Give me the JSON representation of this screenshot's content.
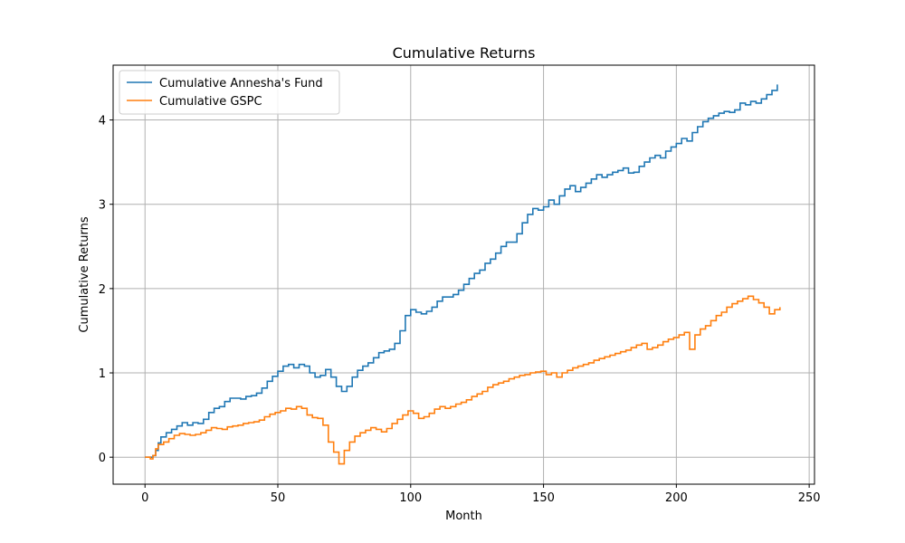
{
  "chart_data": {
    "type": "line",
    "title": "Cumulative Returns",
    "xlabel": "Month",
    "ylabel": "Cumulative Returns",
    "xlim": [
      -12,
      252
    ],
    "ylim": [
      -0.32,
      4.65
    ],
    "x_ticks": [
      0,
      50,
      100,
      150,
      200,
      250
    ],
    "y_ticks": [
      0,
      1,
      2,
      3,
      4
    ],
    "grid": true,
    "legend_placement": "upper-left",
    "step_style": "steps-post",
    "series": [
      {
        "name": "Cumulative Annesha's Fund",
        "color": "#1f77b4",
        "points": [
          [
            0,
            0.0
          ],
          [
            3,
            0.02
          ],
          [
            4,
            0.08
          ],
          [
            5,
            0.17
          ],
          [
            6,
            0.24
          ],
          [
            8,
            0.29
          ],
          [
            10,
            0.33
          ],
          [
            12,
            0.37
          ],
          [
            14,
            0.41
          ],
          [
            16,
            0.38
          ],
          [
            18,
            0.41
          ],
          [
            20,
            0.4
          ],
          [
            22,
            0.45
          ],
          [
            24,
            0.53
          ],
          [
            26,
            0.58
          ],
          [
            28,
            0.6
          ],
          [
            30,
            0.66
          ],
          [
            32,
            0.7
          ],
          [
            34,
            0.7
          ],
          [
            36,
            0.69
          ],
          [
            38,
            0.72
          ],
          [
            40,
            0.73
          ],
          [
            42,
            0.76
          ],
          [
            44,
            0.82
          ],
          [
            46,
            0.9
          ],
          [
            48,
            0.96
          ],
          [
            50,
            1.02
          ],
          [
            52,
            1.08
          ],
          [
            54,
            1.1
          ],
          [
            56,
            1.06
          ],
          [
            58,
            1.1
          ],
          [
            60,
            1.08
          ],
          [
            62,
            1.0
          ],
          [
            64,
            0.95
          ],
          [
            66,
            0.97
          ],
          [
            68,
            1.04
          ],
          [
            70,
            0.95
          ],
          [
            72,
            0.84
          ],
          [
            74,
            0.78
          ],
          [
            76,
            0.84
          ],
          [
            78,
            0.95
          ],
          [
            80,
            1.03
          ],
          [
            82,
            1.08
          ],
          [
            84,
            1.12
          ],
          [
            86,
            1.18
          ],
          [
            88,
            1.24
          ],
          [
            90,
            1.26
          ],
          [
            92,
            1.28
          ],
          [
            94,
            1.35
          ],
          [
            96,
            1.5
          ],
          [
            98,
            1.68
          ],
          [
            100,
            1.75
          ],
          [
            102,
            1.72
          ],
          [
            104,
            1.7
          ],
          [
            106,
            1.73
          ],
          [
            108,
            1.78
          ],
          [
            110,
            1.85
          ],
          [
            112,
            1.9
          ],
          [
            114,
            1.9
          ],
          [
            116,
            1.93
          ],
          [
            118,
            1.98
          ],
          [
            120,
            2.05
          ],
          [
            122,
            2.12
          ],
          [
            124,
            2.18
          ],
          [
            126,
            2.22
          ],
          [
            128,
            2.3
          ],
          [
            130,
            2.35
          ],
          [
            132,
            2.42
          ],
          [
            134,
            2.5
          ],
          [
            136,
            2.55
          ],
          [
            138,
            2.55
          ],
          [
            140,
            2.65
          ],
          [
            142,
            2.78
          ],
          [
            144,
            2.88
          ],
          [
            146,
            2.95
          ],
          [
            148,
            2.93
          ],
          [
            150,
            2.97
          ],
          [
            152,
            3.05
          ],
          [
            154,
            3.0
          ],
          [
            156,
            3.1
          ],
          [
            158,
            3.18
          ],
          [
            160,
            3.22
          ],
          [
            162,
            3.15
          ],
          [
            164,
            3.2
          ],
          [
            166,
            3.25
          ],
          [
            168,
            3.3
          ],
          [
            170,
            3.35
          ],
          [
            172,
            3.32
          ],
          [
            174,
            3.35
          ],
          [
            176,
            3.38
          ],
          [
            178,
            3.4
          ],
          [
            180,
            3.43
          ],
          [
            182,
            3.37
          ],
          [
            184,
            3.38
          ],
          [
            186,
            3.45
          ],
          [
            188,
            3.5
          ],
          [
            190,
            3.55
          ],
          [
            192,
            3.58
          ],
          [
            194,
            3.55
          ],
          [
            196,
            3.63
          ],
          [
            198,
            3.68
          ],
          [
            200,
            3.72
          ],
          [
            202,
            3.78
          ],
          [
            204,
            3.75
          ],
          [
            206,
            3.85
          ],
          [
            208,
            3.92
          ],
          [
            210,
            3.98
          ],
          [
            212,
            4.02
          ],
          [
            214,
            4.05
          ],
          [
            216,
            4.08
          ],
          [
            218,
            4.1
          ],
          [
            220,
            4.09
          ],
          [
            222,
            4.12
          ],
          [
            224,
            4.2
          ],
          [
            226,
            4.18
          ],
          [
            228,
            4.22
          ],
          [
            230,
            4.2
          ],
          [
            232,
            4.25
          ],
          [
            234,
            4.3
          ],
          [
            236,
            4.35
          ],
          [
            238,
            4.42
          ]
        ]
      },
      {
        "name": "Cumulative GSPC",
        "color": "#ff7f0e",
        "points": [
          [
            0,
            0.0
          ],
          [
            2,
            -0.02
          ],
          [
            3,
            0.02
          ],
          [
            4,
            0.1
          ],
          [
            5,
            0.15
          ],
          [
            7,
            0.18
          ],
          [
            9,
            0.22
          ],
          [
            11,
            0.26
          ],
          [
            13,
            0.28
          ],
          [
            15,
            0.27
          ],
          [
            17,
            0.26
          ],
          [
            19,
            0.27
          ],
          [
            21,
            0.29
          ],
          [
            23,
            0.32
          ],
          [
            25,
            0.35
          ],
          [
            27,
            0.34
          ],
          [
            29,
            0.33
          ],
          [
            31,
            0.36
          ],
          [
            33,
            0.37
          ],
          [
            35,
            0.38
          ],
          [
            37,
            0.4
          ],
          [
            39,
            0.41
          ],
          [
            41,
            0.42
          ],
          [
            43,
            0.44
          ],
          [
            45,
            0.48
          ],
          [
            47,
            0.51
          ],
          [
            49,
            0.53
          ],
          [
            51,
            0.55
          ],
          [
            53,
            0.58
          ],
          [
            55,
            0.57
          ],
          [
            57,
            0.6
          ],
          [
            59,
            0.58
          ],
          [
            61,
            0.5
          ],
          [
            63,
            0.47
          ],
          [
            65,
            0.46
          ],
          [
            67,
            0.38
          ],
          [
            69,
            0.18
          ],
          [
            71,
            0.06
          ],
          [
            73,
            -0.08
          ],
          [
            75,
            0.08
          ],
          [
            77,
            0.18
          ],
          [
            79,
            0.25
          ],
          [
            81,
            0.29
          ],
          [
            83,
            0.32
          ],
          [
            85,
            0.35
          ],
          [
            87,
            0.33
          ],
          [
            89,
            0.3
          ],
          [
            91,
            0.34
          ],
          [
            93,
            0.4
          ],
          [
            95,
            0.45
          ],
          [
            97,
            0.5
          ],
          [
            99,
            0.55
          ],
          [
            101,
            0.52
          ],
          [
            103,
            0.46
          ],
          [
            105,
            0.48
          ],
          [
            107,
            0.52
          ],
          [
            109,
            0.57
          ],
          [
            111,
            0.6
          ],
          [
            113,
            0.58
          ],
          [
            115,
            0.6
          ],
          [
            117,
            0.63
          ],
          [
            119,
            0.65
          ],
          [
            121,
            0.68
          ],
          [
            123,
            0.72
          ],
          [
            125,
            0.75
          ],
          [
            127,
            0.78
          ],
          [
            129,
            0.83
          ],
          [
            131,
            0.86
          ],
          [
            133,
            0.88
          ],
          [
            135,
            0.9
          ],
          [
            137,
            0.93
          ],
          [
            139,
            0.95
          ],
          [
            141,
            0.97
          ],
          [
            143,
            0.98
          ],
          [
            145,
            1.0
          ],
          [
            147,
            1.01
          ],
          [
            149,
            1.02
          ],
          [
            151,
            0.98
          ],
          [
            153,
            1.0
          ],
          [
            155,
            0.95
          ],
          [
            157,
            1.0
          ],
          [
            159,
            1.03
          ],
          [
            161,
            1.06
          ],
          [
            163,
            1.08
          ],
          [
            165,
            1.1
          ],
          [
            167,
            1.12
          ],
          [
            169,
            1.15
          ],
          [
            171,
            1.17
          ],
          [
            173,
            1.19
          ],
          [
            175,
            1.21
          ],
          [
            177,
            1.23
          ],
          [
            179,
            1.25
          ],
          [
            181,
            1.27
          ],
          [
            183,
            1.3
          ],
          [
            185,
            1.33
          ],
          [
            187,
            1.35
          ],
          [
            189,
            1.28
          ],
          [
            191,
            1.3
          ],
          [
            193,
            1.33
          ],
          [
            195,
            1.37
          ],
          [
            197,
            1.4
          ],
          [
            199,
            1.42
          ],
          [
            201,
            1.45
          ],
          [
            203,
            1.48
          ],
          [
            205,
            1.28
          ],
          [
            207,
            1.45
          ],
          [
            209,
            1.52
          ],
          [
            211,
            1.56
          ],
          [
            213,
            1.62
          ],
          [
            215,
            1.68
          ],
          [
            217,
            1.72
          ],
          [
            219,
            1.78
          ],
          [
            221,
            1.82
          ],
          [
            223,
            1.85
          ],
          [
            225,
            1.88
          ],
          [
            227,
            1.91
          ],
          [
            229,
            1.87
          ],
          [
            231,
            1.83
          ],
          [
            233,
            1.78
          ],
          [
            235,
            1.7
          ],
          [
            237,
            1.75
          ],
          [
            239,
            1.78
          ]
        ]
      }
    ]
  }
}
